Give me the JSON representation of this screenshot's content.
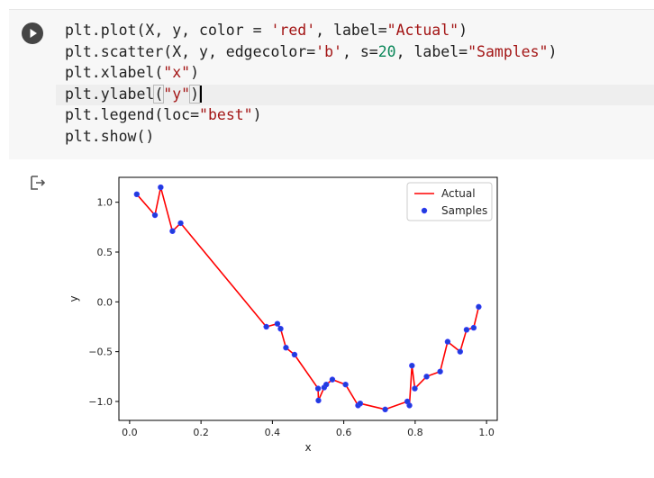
{
  "cell": {
    "run_button_icon": "play-icon",
    "code_lines": [
      [
        {
          "t": "plt.plot(X, y, color = "
        },
        {
          "t": "'red'",
          "c": "str"
        },
        {
          "t": ", label="
        },
        {
          "t": "\"Actual\"",
          "c": "str"
        },
        {
          "t": ")"
        }
      ],
      [
        {
          "t": "plt.scatter(X, y, edgecolor="
        },
        {
          "t": "'b'",
          "c": "str"
        },
        {
          "t": ", s="
        },
        {
          "t": "20",
          "c": "num"
        },
        {
          "t": ", label="
        },
        {
          "t": "\"Samples\"",
          "c": "str"
        },
        {
          "t": ")"
        }
      ],
      [
        {
          "t": "plt.xlabel("
        },
        {
          "t": "\"x\"",
          "c": "str"
        },
        {
          "t": ")"
        }
      ],
      [
        {
          "t": "plt.ylabel"
        },
        {
          "t": "(",
          "c": "bracket"
        },
        {
          "t": "\"y\"",
          "c": "str"
        },
        {
          "t": ")",
          "c": "bracket"
        },
        {
          "t": "",
          "c": "caret"
        }
      ],
      [
        {
          "t": "plt.legend(loc="
        },
        {
          "t": "\"best\"",
          "c": "str"
        },
        {
          "t": ")"
        }
      ],
      [
        {
          "t": "plt.show()"
        }
      ]
    ]
  },
  "output": {
    "output_icon": "output-arrow-icon"
  },
  "colors": {
    "line": "#ff0000",
    "marker_face": "#1f3fd8",
    "marker_edge": "#3a3aff"
  },
  "chart_data": {
    "type": "line",
    "xlabel": "x",
    "ylabel": "y",
    "xlim": [
      -0.03,
      1.03
    ],
    "ylim": [
      -1.19,
      1.25
    ],
    "xticks": [
      0.0,
      0.2,
      0.4,
      0.6,
      0.8,
      1.0
    ],
    "xtick_labels": [
      "0.0",
      "0.2",
      "0.4",
      "0.6",
      "0.8",
      "1.0"
    ],
    "yticks": [
      1.0,
      0.5,
      0.0,
      -0.5,
      -1.0
    ],
    "ytick_labels": [
      "1.0",
      "0.5",
      "0.0",
      "−0.5",
      "−1.0"
    ],
    "legend_position": "top-right",
    "series": [
      {
        "name": "Actual",
        "kind": "line",
        "color": "red",
        "x": [
          0.02,
          0.071,
          0.087,
          0.12,
          0.143,
          0.383,
          0.414,
          0.423,
          0.438,
          0.462,
          0.528,
          0.529,
          0.545,
          0.551,
          0.568,
          0.605,
          0.64,
          0.646,
          0.716,
          0.778,
          0.784,
          0.791,
          0.799,
          0.832,
          0.87,
          0.891,
          0.926,
          0.944,
          0.964,
          0.978
        ],
        "y": [
          1.08,
          0.87,
          1.15,
          0.71,
          0.79,
          -0.25,
          -0.22,
          -0.27,
          -0.46,
          -0.53,
          -0.87,
          -0.99,
          -0.86,
          -0.83,
          -0.78,
          -0.83,
          -1.04,
          -1.02,
          -1.08,
          -1.0,
          -1.04,
          -0.64,
          -0.87,
          -0.75,
          -0.7,
          -0.4,
          -0.5,
          -0.28,
          -0.26,
          -0.05
        ]
      },
      {
        "name": "Samples",
        "kind": "scatter",
        "color": "blue",
        "x": [
          0.02,
          0.071,
          0.087,
          0.12,
          0.143,
          0.383,
          0.414,
          0.423,
          0.438,
          0.462,
          0.528,
          0.529,
          0.545,
          0.551,
          0.568,
          0.605,
          0.64,
          0.646,
          0.716,
          0.778,
          0.784,
          0.791,
          0.799,
          0.832,
          0.87,
          0.891,
          0.926,
          0.944,
          0.964,
          0.978
        ],
        "y": [
          1.08,
          0.87,
          1.15,
          0.71,
          0.79,
          -0.25,
          -0.22,
          -0.27,
          -0.46,
          -0.53,
          -0.87,
          -0.99,
          -0.86,
          -0.83,
          -0.78,
          -0.83,
          -1.04,
          -1.02,
          -1.08,
          -1.0,
          -1.04,
          -0.64,
          -0.87,
          -0.75,
          -0.7,
          -0.4,
          -0.5,
          -0.28,
          -0.26,
          -0.05
        ]
      }
    ]
  }
}
